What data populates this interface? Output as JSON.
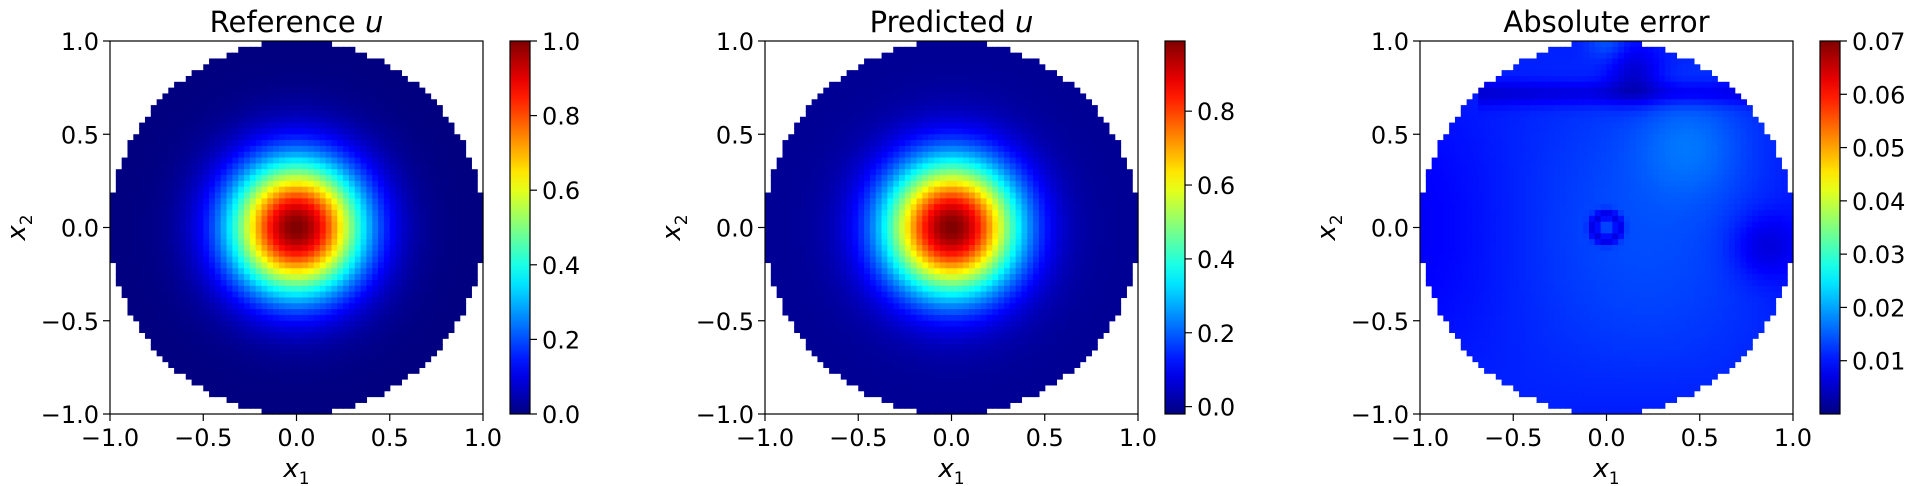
{
  "chart_data": [
    {
      "type": "heatmap",
      "title": "Reference u",
      "title_text": "Reference ",
      "title_var": "u",
      "xlabel": "x1",
      "xlabel_base": "x",
      "xlabel_sub": "1",
      "ylabel": "x2",
      "ylabel_base": "x",
      "ylabel_sub": "2",
      "xlim": [
        -1.0,
        1.0
      ],
      "ylim": [
        -1.0,
        1.0
      ],
      "xticks": [
        "−1.0",
        "−0.5",
        "0.0",
        "0.5",
        "1.0"
      ],
      "yticks": [
        "−1.0",
        "−0.5",
        "0.0",
        "0.5",
        "1.0"
      ],
      "field": "gaussian bump centered at (0,0), peak 1.0, on unit disk",
      "peak": [
        0.0,
        0.0
      ],
      "colormap": "jet",
      "colorbar": {
        "min": 0.0,
        "max": 1.0,
        "ticks": [
          "0.0",
          "0.2",
          "0.4",
          "0.6",
          "0.8",
          "1.0"
        ],
        "tick_values": [
          0.0,
          0.2,
          0.4,
          0.6,
          0.8,
          1.0
        ]
      }
    },
    {
      "type": "heatmap",
      "title": "Predicted u",
      "title_text": "Predicted ",
      "title_var": "u",
      "xlabel": "x1",
      "xlabel_base": "x",
      "xlabel_sub": "1",
      "ylabel": "x2",
      "ylabel_base": "x",
      "ylabel_sub": "2",
      "xlim": [
        -1.0,
        1.0
      ],
      "ylim": [
        -1.0,
        1.0
      ],
      "xticks": [
        "−1.0",
        "−0.5",
        "0.0",
        "0.5",
        "1.0"
      ],
      "yticks": [
        "−1.0",
        "−0.5",
        "0.0",
        "0.5",
        "1.0"
      ],
      "field": "gaussian bump centered at (0,0), peak ~0.99, on unit disk",
      "peak": [
        0.0,
        0.0
      ],
      "colormap": "jet",
      "colorbar": {
        "min": -0.02,
        "max": 0.99,
        "ticks": [
          "0.0",
          "0.2",
          "0.4",
          "0.6",
          "0.8"
        ],
        "tick_values": [
          0.0,
          0.2,
          0.4,
          0.6,
          0.8
        ]
      }
    },
    {
      "type": "heatmap",
      "title": "Absolute error",
      "title_text": "Absolute error",
      "title_var": "",
      "xlabel": "x1",
      "xlabel_base": "x",
      "xlabel_sub": "1",
      "ylabel": "x2",
      "ylabel_base": "x",
      "ylabel_sub": "2",
      "xlim": [
        -1.0,
        1.0
      ],
      "ylim": [
        -1.0,
        1.0
      ],
      "xticks": [
        "−1.0",
        "−0.5",
        "0.0",
        "0.5",
        "1.0"
      ],
      "yticks": [
        "−1.0",
        "−0.5",
        "0.0",
        "0.5",
        "1.0"
      ],
      "field": "low error mostly 0.005-0.015 across disk; dark ring near (0,0); darker band near top edge",
      "colormap": "jet",
      "colorbar": {
        "min": 0.0,
        "max": 0.07,
        "ticks": [
          "0.01",
          "0.02",
          "0.03",
          "0.04",
          "0.05",
          "0.06",
          "0.07"
        ],
        "tick_values": [
          0.01,
          0.02,
          0.03,
          0.04,
          0.05,
          0.06,
          0.07
        ]
      }
    }
  ]
}
